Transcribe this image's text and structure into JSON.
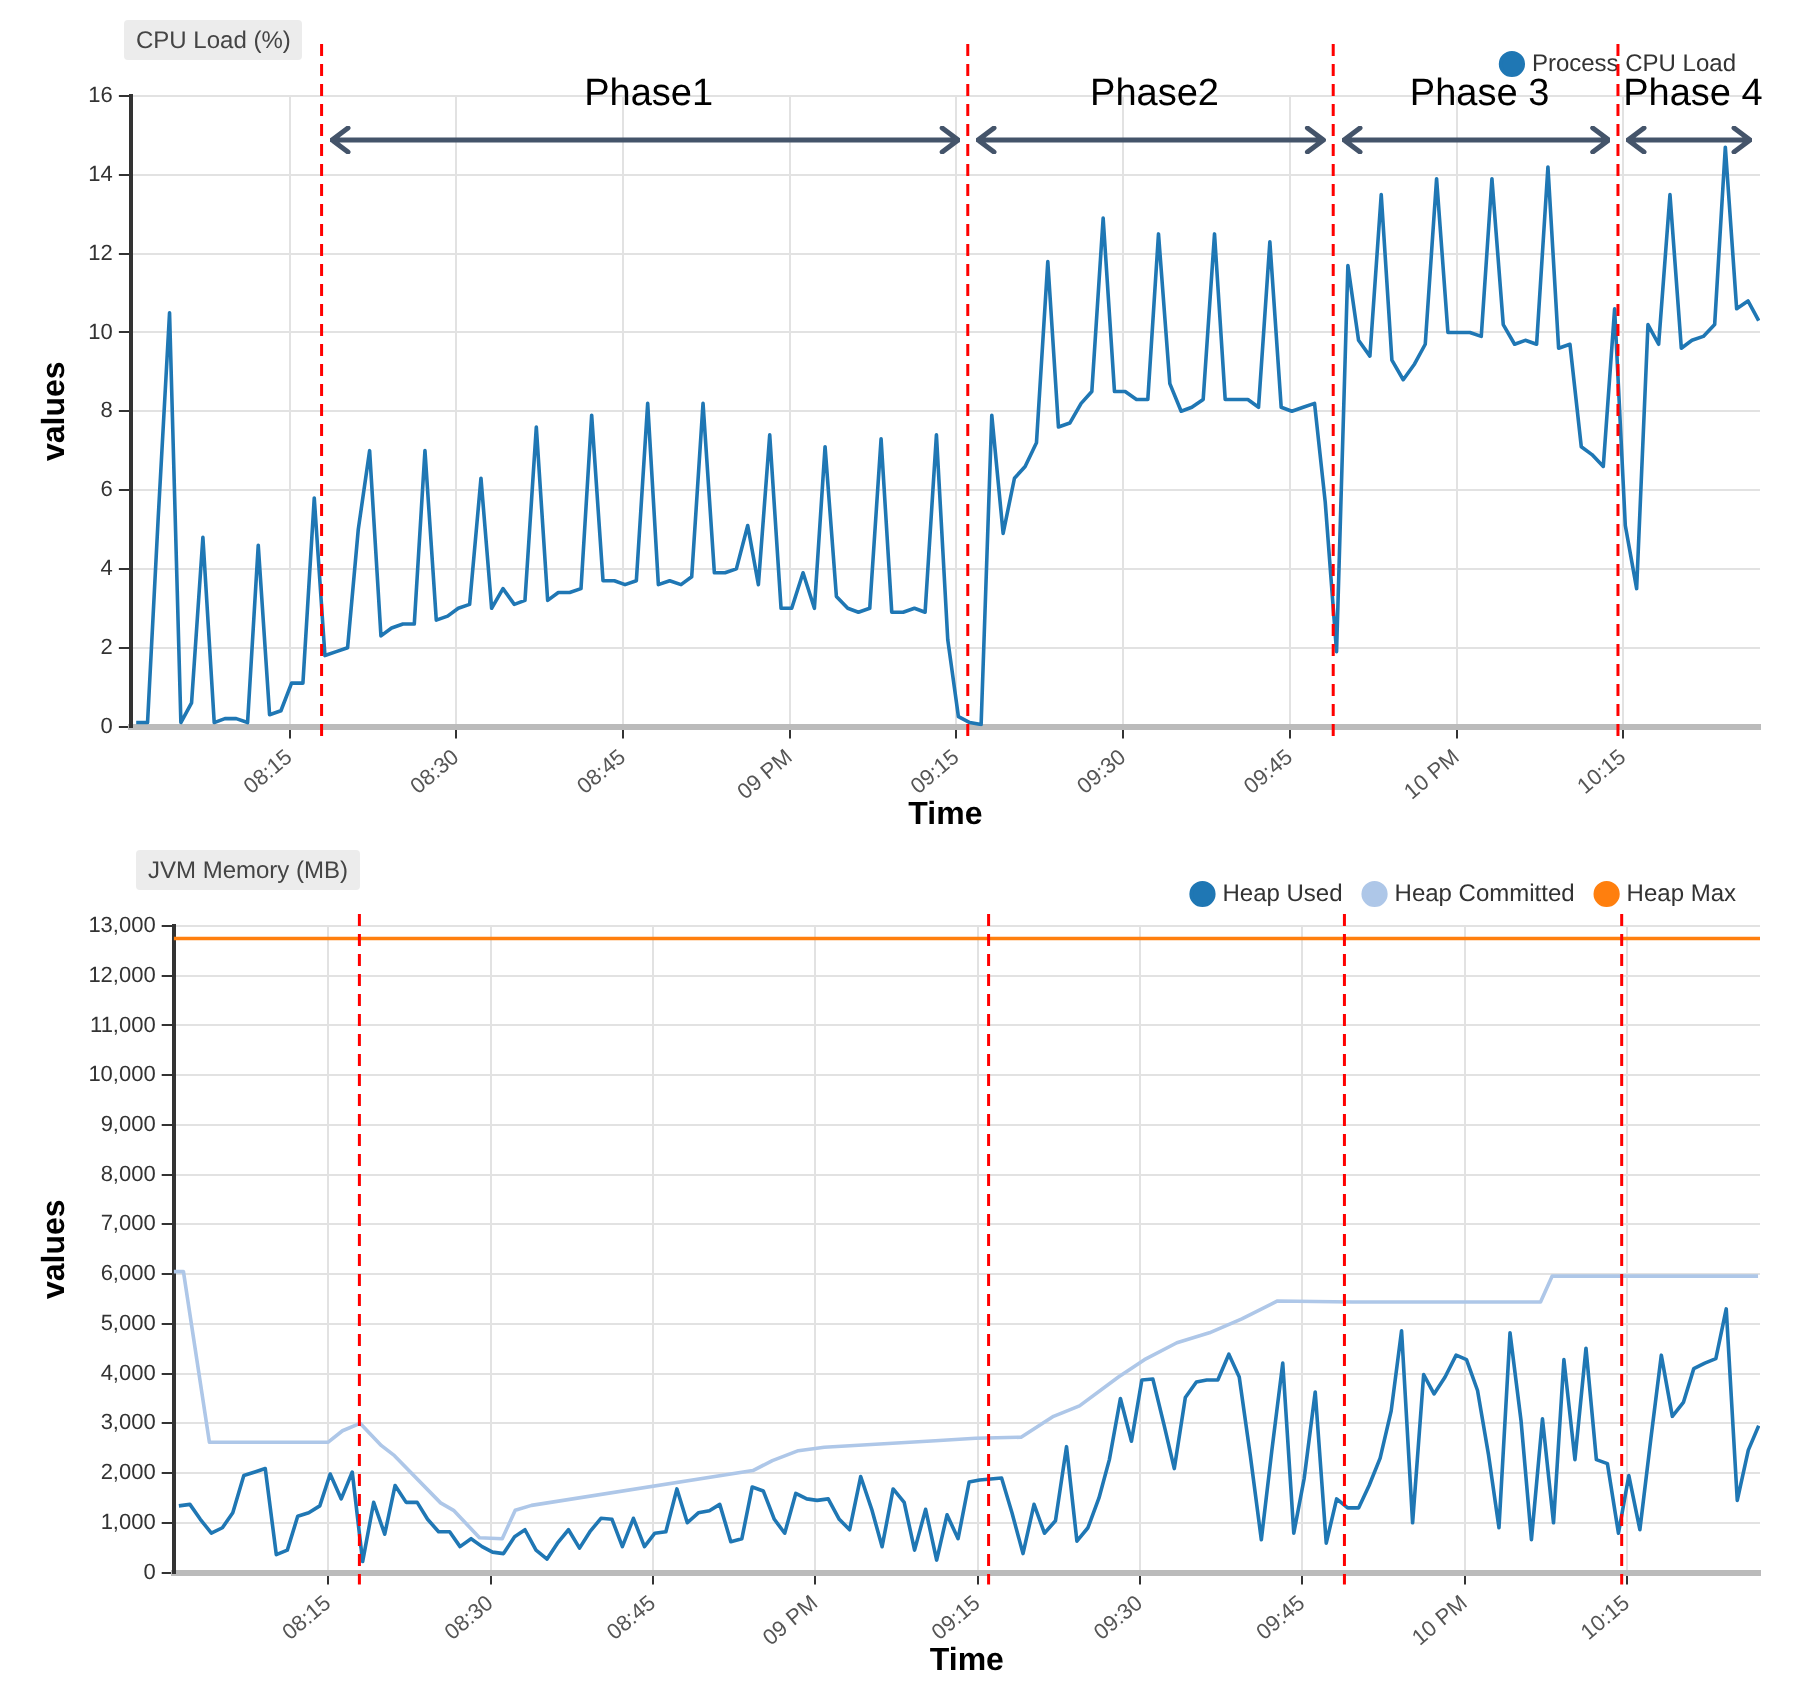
{
  "chart_data": [
    {
      "type": "line",
      "title": "CPU Load (%)",
      "xlabel": "Time",
      "ylabel": "values",
      "x": [
        8.02,
        8.037,
        8.053,
        8.07,
        8.087,
        8.103,
        8.12,
        8.137,
        8.153,
        8.17,
        8.187,
        8.203,
        8.22,
        8.237,
        8.253,
        8.27,
        8.287,
        8.303,
        8.32,
        8.337,
        8.353,
        8.37,
        8.387,
        8.403,
        8.42,
        8.437,
        8.453,
        8.47,
        8.487,
        8.503,
        8.52,
        8.537,
        8.553,
        8.57,
        8.587,
        8.603,
        8.62,
        8.637,
        8.653,
        8.67,
        8.687,
        8.703,
        8.72,
        8.737,
        8.753,
        8.77,
        8.787,
        8.803,
        8.82,
        8.837,
        8.853,
        8.87,
        8.887,
        8.903,
        8.92,
        8.937,
        8.953,
        8.97,
        8.987,
        9.003,
        9.02,
        9.037,
        9.053,
        9.07,
        9.087,
        9.103,
        9.12,
        9.137,
        9.153,
        9.17,
        9.187,
        9.203,
        9.22,
        9.237,
        9.253,
        9.27,
        9.287,
        9.303,
        9.32,
        9.337,
        9.353,
        9.37,
        9.387,
        9.403,
        9.42,
        9.437,
        9.453,
        9.47,
        9.487,
        9.503,
        9.52,
        9.537,
        9.553,
        9.57,
        9.587,
        9.603,
        9.62,
        9.637,
        9.653,
        9.67,
        9.687,
        9.703,
        9.72,
        9.737,
        9.753,
        9.77,
        9.787,
        9.803,
        9.82,
        9.837,
        9.853,
        9.87,
        9.887,
        9.903,
        9.92,
        9.937,
        9.953,
        9.97,
        9.987,
        10.003,
        10.02,
        10.037,
        10.053,
        10.07,
        10.087,
        10.103,
        10.12,
        10.137,
        10.153,
        10.17,
        10.187,
        10.203,
        10.22,
        10.237,
        10.253,
        10.27,
        10.287,
        10.303,
        10.32,
        10.337,
        10.353,
        10.37,
        10.387,
        10.403,
        10.42,
        10.437,
        10.453
      ],
      "series": [
        {
          "name": "Process CPU Load",
          "color": "#1f77b4",
          "values": [
            0.1,
            0.1,
            5.3,
            10.5,
            0.1,
            0.6,
            4.8,
            0.1,
            0.2,
            0.2,
            0.1,
            4.6,
            0.3,
            0.4,
            1.1,
            1.1,
            5.8,
            1.8,
            1.9,
            2.0,
            5.0,
            7.0,
            2.3,
            2.5,
            2.6,
            2.6,
            7.0,
            2.7,
            2.8,
            3.0,
            3.1,
            6.3,
            3.0,
            3.5,
            3.1,
            3.2,
            7.6,
            3.2,
            3.4,
            3.4,
            3.5,
            7.9,
            3.7,
            3.7,
            3.6,
            3.7,
            8.2,
            3.6,
            3.7,
            3.6,
            3.8,
            8.2,
            3.9,
            3.9,
            4.0,
            5.1,
            3.6,
            7.4,
            3.0,
            3.0,
            3.9,
            3.0,
            7.1,
            3.3,
            3.0,
            2.9,
            3.0,
            7.3,
            2.9,
            2.9,
            3.0,
            2.9,
            7.4,
            2.2,
            0.25,
            0.1,
            0.05,
            7.9,
            4.9,
            6.3,
            6.6,
            7.2,
            11.8,
            7.6,
            7.7,
            8.2,
            8.5,
            12.9,
            8.5,
            8.5,
            8.3,
            8.3,
            12.5,
            8.7,
            8.0,
            8.1,
            8.3,
            12.5,
            8.3,
            8.3,
            8.3,
            8.1,
            12.3,
            8.1,
            8.0,
            8.1,
            8.2,
            5.7,
            1.9,
            11.7,
            9.8,
            9.4,
            13.5,
            9.3,
            8.8,
            9.2,
            9.7,
            13.9,
            10.0,
            10.0,
            10.0,
            9.9,
            13.9,
            10.2,
            9.7,
            9.8,
            9.7,
            14.2,
            9.6,
            9.7,
            7.1,
            6.9,
            6.6,
            10.6,
            5.1,
            3.5,
            10.2,
            9.7,
            13.5,
            9.6,
            9.8,
            9.9,
            10.2,
            14.7,
            10.6,
            10.8,
            10.3
          ]
        }
      ],
      "xlim": [
        8.012,
        10.455
      ],
      "xticks": [
        {
          "value": 8.25,
          "label": "08:15"
        },
        {
          "value": 8.5,
          "label": "08:30"
        },
        {
          "value": 8.75,
          "label": "08:45"
        },
        {
          "value": 9,
          "label": "09 PM"
        },
        {
          "value": 9.25,
          "label": "09:15"
        },
        {
          "value": 9.5,
          "label": "09:30"
        },
        {
          "value": 9.75,
          "label": "09:45"
        },
        {
          "value": 10,
          "label": "10 PM"
        },
        {
          "value": 10.25,
          "label": "10:15"
        }
      ],
      "ylim": [
        0,
        16
      ],
      "yticks": [
        0,
        2,
        4,
        6,
        8,
        10,
        12,
        14,
        16
      ],
      "grid": true,
      "legend": "top right",
      "marker": "none",
      "ref_lines": [
        {
          "axis": "x",
          "value": 8.298,
          "color": "#ff0000",
          "line_style": "dashed"
        },
        {
          "axis": "x",
          "value": 9.267,
          "color": "#ff0000",
          "line_style": "dashed"
        },
        {
          "axis": "x",
          "value": 9.815,
          "color": "#ff0000",
          "line_style": "dashed"
        },
        {
          "axis": "x",
          "value": 10.242,
          "color": "#ff0000",
          "line_style": "dashed"
        }
      ],
      "annotations": [
        "Phase1",
        "Phase2",
        "Phase 3",
        "Phase 4"
      ]
    },
    {
      "type": "line",
      "title": "JVM Memory (MB)",
      "xlabel": "Time",
      "ylabel": "values",
      "x": [
        8.02,
        8.037,
        8.053,
        8.07,
        8.087,
        8.103,
        8.12,
        8.137,
        8.153,
        8.17,
        8.187,
        8.203,
        8.22,
        8.237,
        8.253,
        8.27,
        8.287,
        8.303,
        8.32,
        8.337,
        8.353,
        8.37,
        8.387,
        8.403,
        8.42,
        8.437,
        8.453,
        8.47,
        8.487,
        8.503,
        8.52,
        8.537,
        8.553,
        8.57,
        8.587,
        8.603,
        8.62,
        8.637,
        8.653,
        8.67,
        8.687,
        8.703,
        8.72,
        8.737,
        8.753,
        8.77,
        8.787,
        8.803,
        8.82,
        8.837,
        8.853,
        8.87,
        8.887,
        8.903,
        8.92,
        8.937,
        8.953,
        8.97,
        8.987,
        9.003,
        9.02,
        9.037,
        9.053,
        9.07,
        9.087,
        9.103,
        9.12,
        9.137,
        9.153,
        9.17,
        9.187,
        9.203,
        9.22,
        9.237,
        9.253,
        9.27,
        9.287,
        9.303,
        9.32,
        9.337,
        9.353,
        9.37,
        9.387,
        9.403,
        9.42,
        9.437,
        9.453,
        9.47,
        9.487,
        9.503,
        9.52,
        9.537,
        9.553,
        9.57,
        9.587,
        9.603,
        9.62,
        9.637,
        9.653,
        9.67,
        9.687,
        9.703,
        9.72,
        9.737,
        9.753,
        9.77,
        9.787,
        9.803,
        9.82,
        9.837,
        9.853,
        9.87,
        9.887,
        9.903,
        9.92,
        9.937,
        9.953,
        9.97,
        9.987,
        10.003,
        10.02,
        10.037,
        10.053,
        10.07,
        10.087,
        10.103,
        10.12,
        10.137,
        10.153,
        10.17,
        10.187,
        10.203,
        10.22,
        10.237,
        10.253,
        10.27,
        10.287,
        10.303,
        10.32,
        10.337,
        10.353,
        10.37,
        10.387,
        10.403,
        10.42,
        10.437,
        10.453
      ],
      "series": [
        {
          "name": "Heap Used",
          "color": "#1f77b4",
          "values": [
            1340,
            1370,
            1070,
            790,
            900,
            1200,
            1950,
            2020,
            2090,
            360,
            450,
            1130,
            1200,
            1340,
            1980,
            1480,
            2020,
            220,
            1410,
            770,
            1750,
            1410,
            1410,
            1070,
            820,
            820,
            520,
            680,
            520,
            410,
            380,
            720,
            860,
            450,
            270,
            590,
            860,
            490,
            820,
            1090,
            1070,
            520,
            1090,
            520,
            790,
            820,
            1680,
            1000,
            1200,
            1240,
            1370,
            620,
            680,
            1720,
            1640,
            1070,
            790,
            1590,
            1480,
            1450,
            1480,
            1070,
            860,
            1930,
            1270,
            520,
            1680,
            1410,
            450,
            1270,
            250,
            1160,
            680,
            1820,
            1860,
            1880,
            1900,
            1200,
            380,
            1370,
            790,
            1040,
            2530,
            630,
            900,
            1500,
            2270,
            3500,
            2640,
            3870,
            3890,
            2980,
            2090,
            3520,
            3830,
            3870,
            3870,
            4390,
            3930,
            2360,
            660,
            2430,
            4210,
            790,
            1890,
            3630,
            590,
            1480,
            1300,
            1300,
            1750,
            2300,
            3250,
            4860,
            1000,
            3980,
            3590,
            3930,
            4370,
            4280,
            3660,
            2360,
            900,
            4820,
            3050,
            660,
            3090,
            1000,
            4280,
            2270,
            4510,
            2270,
            2190,
            790,
            1950,
            860,
            2700,
            4370,
            3140,
            3420,
            4100,
            4210,
            4300,
            5300,
            1450,
            2460,
            2950
          ]
        },
        {
          "name": "Heap Committed",
          "color": "#aec7e8",
          "x": [
            8.012,
            8.027,
            8.067,
            8.25,
            8.272,
            8.299,
            8.332,
            8.352,
            8.423,
            8.443,
            8.483,
            8.518,
            8.538,
            8.563,
            8.904,
            8.934,
            8.974,
            9.014,
            9.185,
            9.247,
            9.317,
            9.367,
            9.407,
            9.467,
            9.507,
            9.557,
            9.607,
            9.657,
            9.712,
            9.827,
            10.117,
            10.135,
            10.452
          ],
          "values": [
            6050,
            6050,
            2620,
            2620,
            2850,
            3000,
            2550,
            2350,
            1400,
            1250,
            700,
            680,
            1250,
            1350,
            2050,
            2250,
            2450,
            2520,
            2650,
            2700,
            2720,
            3140,
            3350,
            3930,
            4280,
            4620,
            4820,
            5100,
            5460,
            5440,
            5440,
            5960,
            5960
          ]
        },
        {
          "name": "Heap Max",
          "color": "#ff7f0e",
          "x": [
            8.012,
            10.455
          ],
          "values": [
            12750,
            12750
          ]
        }
      ],
      "xlim": [
        8.012,
        10.455
      ],
      "xticks": [
        {
          "value": 8.25,
          "label": "08:15"
        },
        {
          "value": 8.5,
          "label": "08:30"
        },
        {
          "value": 8.75,
          "label": "08:45"
        },
        {
          "value": 9,
          "label": "09 PM"
        },
        {
          "value": 9.25,
          "label": "09:15"
        },
        {
          "value": 9.5,
          "label": "09:30"
        },
        {
          "value": 9.75,
          "label": "09:45"
        },
        {
          "value": 10,
          "label": "10 PM"
        },
        {
          "value": 10.25,
          "label": "10:15"
        }
      ],
      "ylim": [
        0,
        13000
      ],
      "yticks": [
        {
          "value": 0,
          "label": "0"
        },
        {
          "value": 1000,
          "label": "1,000"
        },
        {
          "value": 2000,
          "label": "2,000"
        },
        {
          "value": 3000,
          "label": "3,000"
        },
        {
          "value": 4000,
          "label": "4,000"
        },
        {
          "value": 5000,
          "label": "5,000"
        },
        {
          "value": 6000,
          "label": "6,000"
        },
        {
          "value": 7000,
          "label": "7,000"
        },
        {
          "value": 8000,
          "label": "8,000"
        },
        {
          "value": 9000,
          "label": "9,000"
        },
        {
          "value": 10000,
          "label": "10,000"
        },
        {
          "value": 11000,
          "label": "11,000"
        },
        {
          "value": 12000,
          "label": "12,000"
        },
        {
          "value": 13000,
          "label": "13,000"
        }
      ],
      "grid": true,
      "legend": "top right",
      "marker": "none",
      "ref_lines": [
        {
          "axis": "x",
          "value": 8.298,
          "color": "#ff0000",
          "line_style": "dashed"
        },
        {
          "axis": "x",
          "value": 9.267,
          "color": "#ff0000",
          "line_style": "dashed"
        },
        {
          "axis": "x",
          "value": 9.815,
          "color": "#ff0000",
          "line_style": "dashed"
        },
        {
          "axis": "x",
          "value": 10.242,
          "color": "#ff0000",
          "line_style": "dashed"
        }
      ]
    }
  ]
}
